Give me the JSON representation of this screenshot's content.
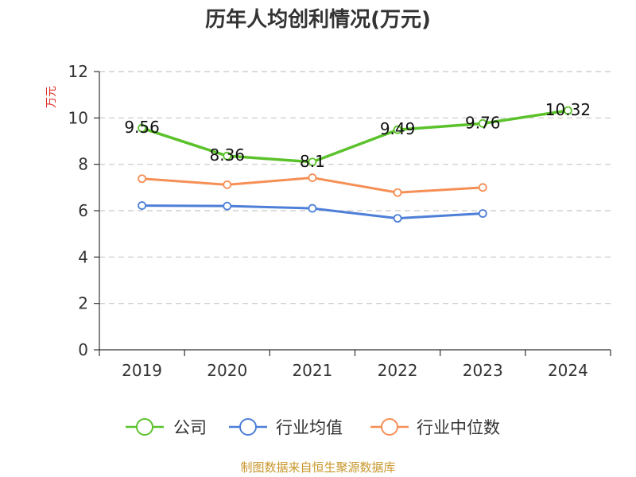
{
  "chart_data": {
    "type": "line",
    "title": "历年人均创利情况(万元)",
    "ylabel": "万元",
    "categories": [
      "2019",
      "2020",
      "2021",
      "2022",
      "2023",
      "2024"
    ],
    "ylim": [
      0,
      12
    ],
    "yticks": [
      "0",
      "2",
      "4",
      "6",
      "8",
      "10",
      "12"
    ],
    "grid": true,
    "legend_position": "bottom",
    "series": [
      {
        "name": "公司",
        "color": "#5cc22c",
        "values": [
          9.56,
          8.36,
          8.1,
          9.49,
          9.76,
          10.32
        ],
        "labels": [
          "9.56",
          "8.36",
          "8.1",
          "9.49",
          "9.76",
          "10.32"
        ]
      },
      {
        "name": "行业均值",
        "color": "#4e7fd8",
        "values": [
          6.22,
          6.2,
          6.1,
          5.67,
          5.88,
          null
        ]
      },
      {
        "name": "行业中位数",
        "color": "#f58f55",
        "values": [
          7.38,
          7.12,
          7.42,
          6.78,
          7.0,
          null
        ]
      }
    ]
  },
  "footer": {
    "source": "制图数据来自恒生聚源数据库"
  }
}
